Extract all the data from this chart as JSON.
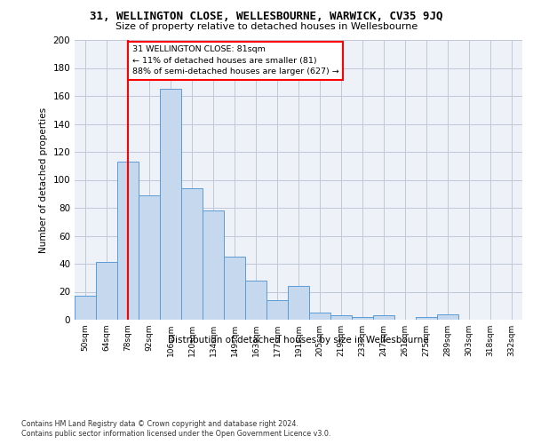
{
  "title1": "31, WELLINGTON CLOSE, WELLESBOURNE, WARWICK, CV35 9JQ",
  "title2": "Size of property relative to detached houses in Wellesbourne",
  "xlabel": "Distribution of detached houses by size in Wellesbourne",
  "ylabel": "Number of detached properties",
  "footnote1": "Contains HM Land Registry data © Crown copyright and database right 2024.",
  "footnote2": "Contains public sector information licensed under the Open Government Licence v3.0.",
  "bar_labels": [
    "50sqm",
    "64sqm",
    "78sqm",
    "92sqm",
    "106sqm",
    "120sqm",
    "134sqm",
    "149sqm",
    "163sqm",
    "177sqm",
    "191sqm",
    "205sqm",
    "219sqm",
    "233sqm",
    "247sqm",
    "261sqm",
    "275sqm",
    "289sqm",
    "303sqm",
    "318sqm",
    "332sqm"
  ],
  "bar_values": [
    17,
    41,
    113,
    89,
    165,
    94,
    78,
    45,
    28,
    14,
    24,
    5,
    3,
    2,
    3,
    0,
    2,
    4,
    0,
    0,
    0
  ],
  "bar_color": "#c5d8ed",
  "bar_edge_color": "#5b9bd5",
  "grid_color": "#c0c8d8",
  "annotation_line1": "31 WELLINGTON CLOSE: 81sqm",
  "annotation_line2": "← 11% of detached houses are smaller (81)",
  "annotation_line3": "88% of semi-detached houses are larger (627) →",
  "annotation_box_color": "white",
  "annotation_box_edge": "red",
  "vline_x": 2.0,
  "vline_color": "red",
  "ylim": [
    0,
    200
  ],
  "yticks": [
    0,
    20,
    40,
    60,
    80,
    100,
    120,
    140,
    160,
    180,
    200
  ],
  "background_color": "#eef2f8",
  "fig_background": "white"
}
